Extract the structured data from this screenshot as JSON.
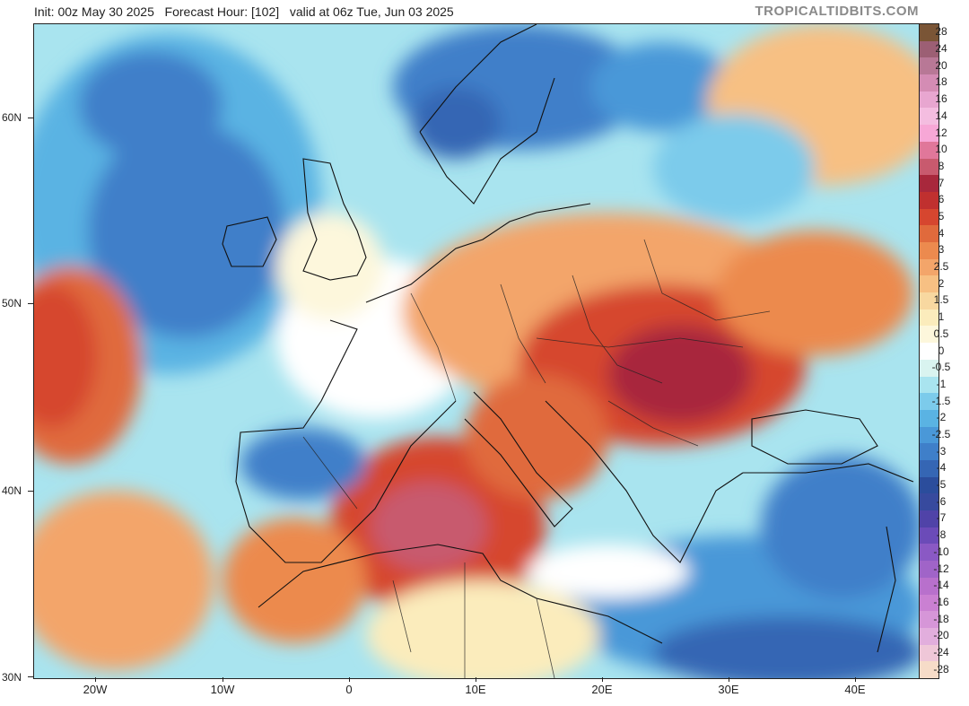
{
  "header": {
    "line": "Init: 00z May 30 2025   Forecast Hour: [102]   valid at 06z Tue, Jun 03 2025",
    "brand": "TROPICALTIDBITS.COM"
  },
  "axes": {
    "lat_labels": [
      "60N",
      "50N",
      "40N",
      "30N"
    ],
    "lon_labels": [
      "20W",
      "10W",
      "0",
      "10E",
      "20E",
      "30E",
      "40E"
    ]
  },
  "colorbar": {
    "labels": [
      "28",
      "24",
      "20",
      "18",
      "16",
      "14",
      "12",
      "10",
      "8",
      "7",
      "6",
      "5",
      "4",
      "3",
      "2.5",
      "2",
      "1.5",
      "1",
      "0.5",
      "0",
      "-0.5",
      "-1",
      "-1.5",
      "-2",
      "-2.5",
      "-3",
      "-4",
      "-5",
      "-6",
      "-7",
      "-8",
      "-10",
      "-12",
      "-14",
      "-16",
      "-18",
      "-20",
      "-24",
      "-28"
    ],
    "colors": [
      "#7a5536",
      "#9c5f74",
      "#b87896",
      "#d48cb4",
      "#e8a6d0",
      "#f4bde0",
      "#f7a7d6",
      "#e0779a",
      "#c85a6e",
      "#a8283c",
      "#c0302f",
      "#d6462f",
      "#e06a3c",
      "#ec8a4e",
      "#f3a56a",
      "#f7c083",
      "#f8d8a0",
      "#fbecbc",
      "#fdf7dc",
      "#ffffff",
      "#d9f4f0",
      "#a9e4ef",
      "#7ccbeb",
      "#5ab3e3",
      "#4a98d8",
      "#3f7fc9",
      "#3566b4",
      "#2b4d9c",
      "#374a9e",
      "#5043a8",
      "#6b4bb8",
      "#8a59c4",
      "#a064c8",
      "#b870cc",
      "#ca80d2",
      "#d696d8",
      "#e2aedd",
      "#efc7d8",
      "#f6dcc8"
    ]
  }
}
